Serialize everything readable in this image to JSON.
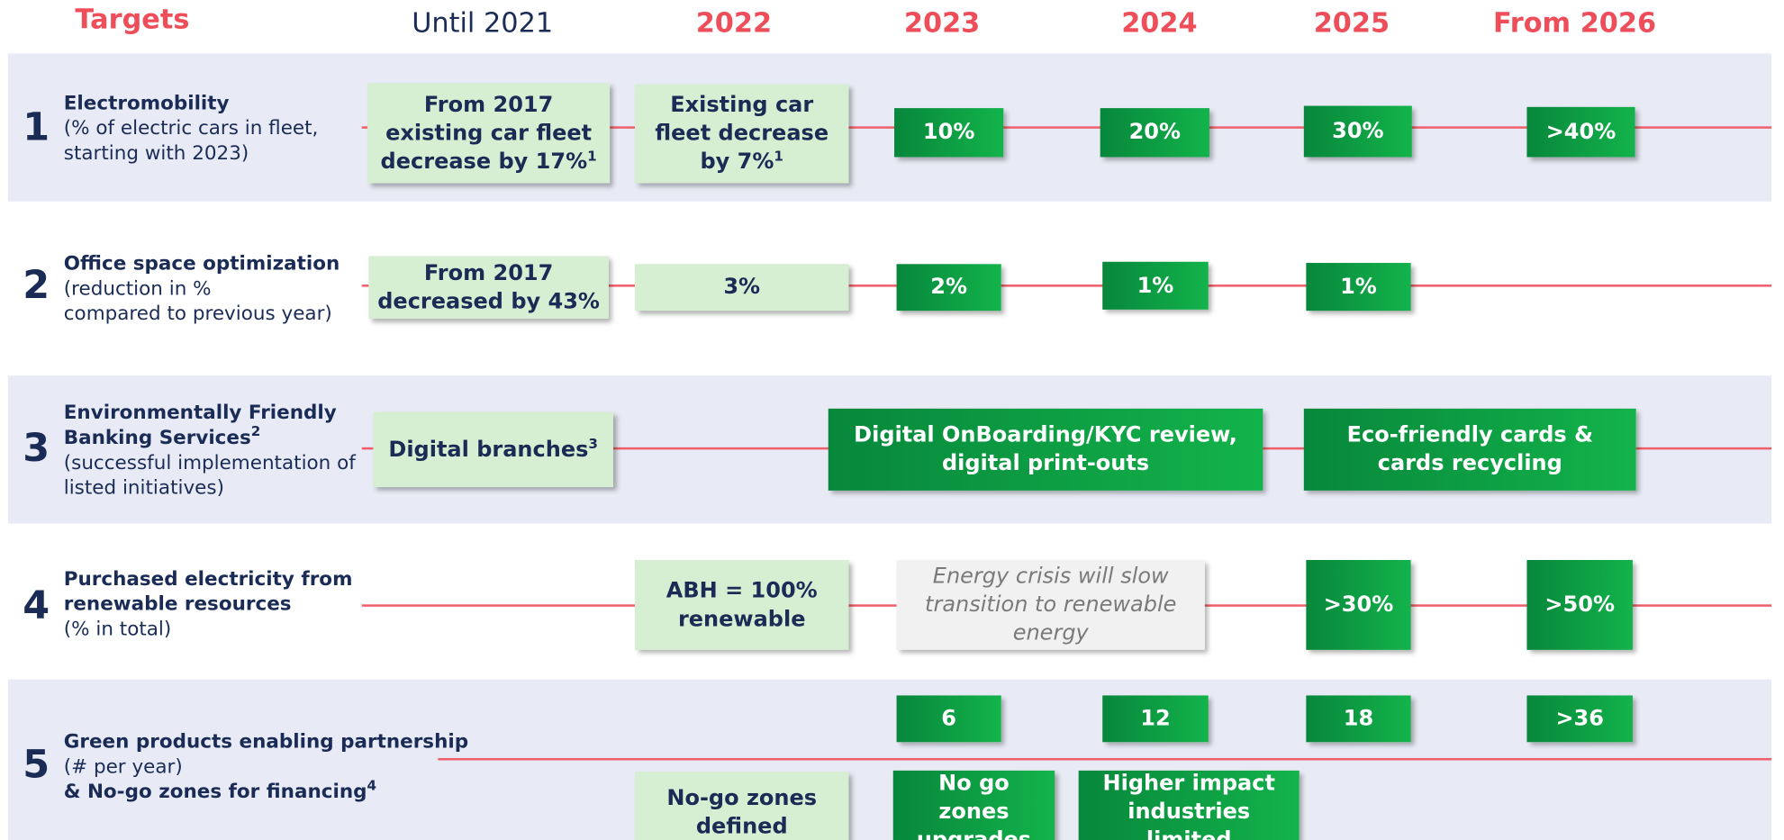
{
  "header": {
    "title": "Targets",
    "columns": [
      {
        "text": "Until 2021",
        "style": "plain"
      },
      {
        "text": "2022",
        "style": "accent"
      },
      {
        "text": "2023",
        "style": "accent"
      },
      {
        "text": "2024",
        "style": "accent"
      },
      {
        "text": "2025",
        "style": "accent"
      },
      {
        "text": "From 2026",
        "style": "accent"
      }
    ]
  },
  "rows": [
    {
      "number": "1",
      "band": true,
      "lines": [
        {
          "text": "Electromobility",
          "style": "bold"
        },
        {
          "text": "(% of electric cars in fleet,",
          "style": "normal"
        },
        {
          "text": " starting with 2023)",
          "style": "normal"
        }
      ],
      "boxes": [
        {
          "text": "From 2017 existing car fleet decrease by 17%",
          "note": "1",
          "kind": "light"
        },
        {
          "text": "Existing car fleet decrease by 7%",
          "note": "1",
          "kind": "light"
        },
        {
          "text": "10%",
          "kind": "dark"
        },
        {
          "text": "20%",
          "kind": "dark"
        },
        {
          "text": "30%",
          "kind": "dark"
        },
        {
          "text": ">40%",
          "kind": "dark"
        }
      ]
    },
    {
      "number": "2",
      "band": false,
      "lines": [
        {
          "text": "Office space optimization",
          "style": "bold"
        },
        {
          "text": "(reduction in %",
          "style": "normal"
        },
        {
          "text": "compared to previous year)",
          "style": "normal"
        }
      ],
      "boxes": [
        {
          "text": "From 2017 decreased by 43%",
          "kind": "light"
        },
        {
          "text": "3%",
          "kind": "light"
        },
        {
          "text": "2%",
          "kind": "dark"
        },
        {
          "text": "1%",
          "kind": "dark"
        },
        {
          "text": "1%",
          "kind": "dark"
        }
      ]
    },
    {
      "number": "3",
      "band": true,
      "lines": [
        {
          "text": "Environmentally Friendly",
          "style": "bold"
        },
        {
          "text": "Banking Services",
          "note": "2",
          "style": "bold"
        },
        {
          "text": "(successful implementation of",
          "style": "normal"
        },
        {
          "text": "listed initiatives)",
          "style": "normal"
        }
      ],
      "boxes": [
        {
          "text": "Digital branches",
          "note": "3",
          "kind": "light"
        },
        {
          "text": "Digital OnBoarding/KYC review, digital print-outs",
          "kind": "dark"
        },
        {
          "text": "Eco-friendly cards & cards recycling",
          "kind": "dark"
        }
      ]
    },
    {
      "number": "4",
      "band": false,
      "lines": [
        {
          "text": "Purchased electricity from",
          "style": "bold"
        },
        {
          "text": "renewable resources",
          "style": "bold"
        },
        {
          "text": "(% in total)",
          "style": "normal"
        }
      ],
      "boxes": [
        {
          "text": "ABH = 100% renewable",
          "kind": "light"
        },
        {
          "text": "Energy crisis will slow transition to renewable energy",
          "kind": "gray"
        },
        {
          "text": ">30%",
          "kind": "dark"
        },
        {
          "text": ">50%",
          "kind": "dark"
        }
      ]
    },
    {
      "number": "5",
      "band": true,
      "lines": [
        {
          "text": "Green products enabling partnership",
          "style": "bold"
        },
        {
          "text": "(# per year)",
          "style": "normal"
        },
        {
          "text": "& No-go zones for financing",
          "note": "4",
          "style": "bold"
        }
      ],
      "boxes": [
        {
          "text": "6",
          "kind": "dark"
        },
        {
          "text": "12",
          "kind": "dark"
        },
        {
          "text": "18",
          "kind": "dark"
        },
        {
          "text": ">36",
          "kind": "dark"
        },
        {
          "text": "No-go zones defined",
          "kind": "light"
        },
        {
          "text": "No go zones upgrades",
          "kind": "dark"
        },
        {
          "text": "Higher impact industries limited",
          "kind": "dark"
        }
      ]
    }
  ]
}
